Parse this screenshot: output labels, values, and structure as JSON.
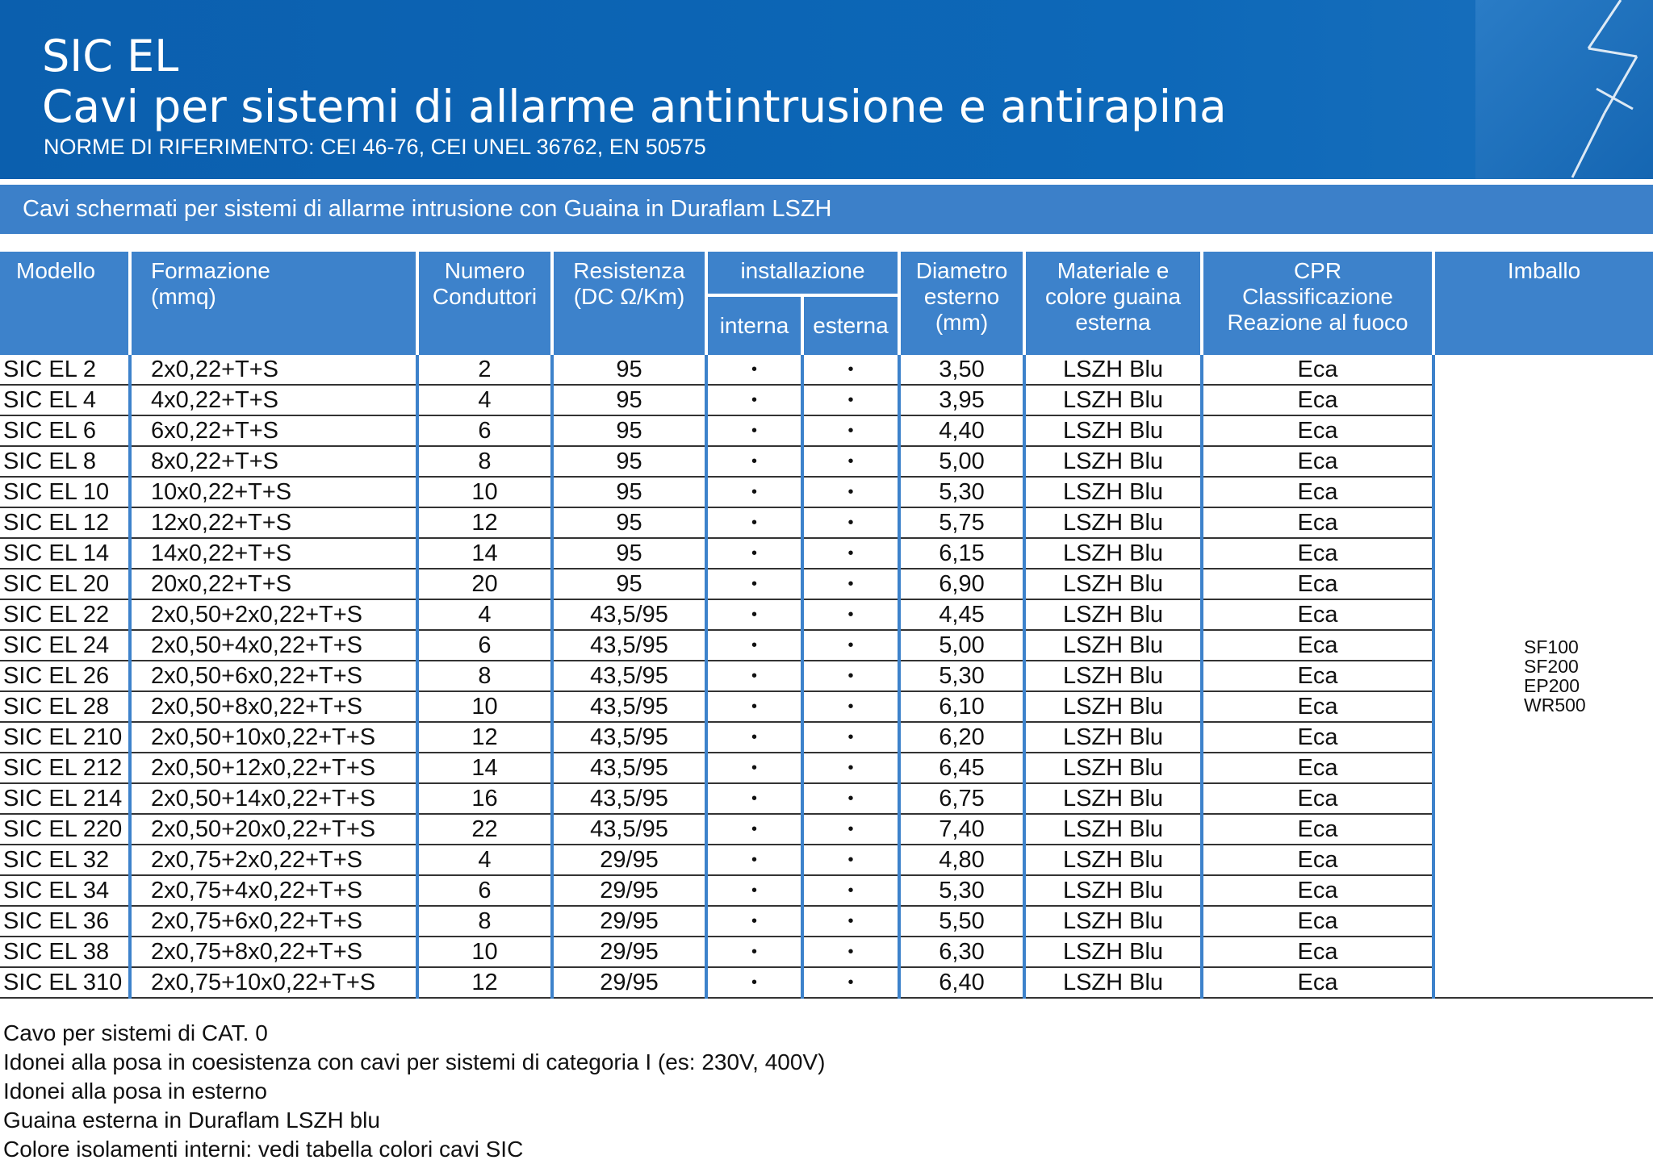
{
  "header": {
    "title": "SIC EL",
    "subtitle": "Cavi per sistemi di allarme antintrusione e antirapina",
    "norms": "NORME DI RIFERIMENTO: CEI 46-76, CEI UNEL 36762, EN 50575"
  },
  "section": "Cavi schermati per sistemi di allarme intrusione con Guaina in Duraflam LSZH",
  "table": {
    "columns": [
      "Modello",
      "Formazione\n(mmq)",
      "Numero\nConduttori",
      "Resistenza\n(DC Ω/Km)",
      "installazione",
      "Diametro\nesterno\n(mm)",
      "Materiale e\ncolore guaina\nesterna",
      "CPR\nClassificazione\nReazione al fuoco",
      "Imballo"
    ],
    "subcolumns": [
      "interna",
      "esterna"
    ],
    "rows": [
      [
        "SIC EL 2",
        "2x0,22+T+S",
        "2",
        "95",
        "•",
        "•",
        "3,50",
        "LSZH Blu",
        "Eca"
      ],
      [
        "SIC EL 4",
        "4x0,22+T+S",
        "4",
        "95",
        "•",
        "•",
        "3,95",
        "LSZH Blu",
        "Eca"
      ],
      [
        "SIC EL 6",
        "6x0,22+T+S",
        "6",
        "95",
        "•",
        "•",
        "4,40",
        "LSZH Blu",
        "Eca"
      ],
      [
        "SIC EL 8",
        "8x0,22+T+S",
        "8",
        "95",
        "•",
        "•",
        "5,00",
        "LSZH Blu",
        "Eca"
      ],
      [
        "SIC EL 10",
        "10x0,22+T+S",
        "10",
        "95",
        "•",
        "•",
        "5,30",
        "LSZH Blu",
        "Eca"
      ],
      [
        "SIC EL 12",
        "12x0,22+T+S",
        "12",
        "95",
        "•",
        "•",
        "5,75",
        "LSZH Blu",
        "Eca"
      ],
      [
        "SIC EL 14",
        "14x0,22+T+S",
        "14",
        "95",
        "•",
        "•",
        "6,15",
        "LSZH Blu",
        "Eca"
      ],
      [
        "SIC EL 20",
        "20x0,22+T+S",
        "20",
        "95",
        "•",
        "•",
        "6,90",
        "LSZH Blu",
        "Eca"
      ],
      [
        "SIC EL 22",
        "2x0,50+2x0,22+T+S",
        "4",
        "43,5/95",
        "•",
        "•",
        "4,45",
        "LSZH Blu",
        "Eca"
      ],
      [
        "SIC EL 24",
        "2x0,50+4x0,22+T+S",
        "6",
        "43,5/95",
        "•",
        "•",
        "5,00",
        "LSZH Blu",
        "Eca"
      ],
      [
        "SIC EL 26",
        "2x0,50+6x0,22+T+S",
        "8",
        "43,5/95",
        "•",
        "•",
        "5,30",
        "LSZH Blu",
        "Eca"
      ],
      [
        "SIC EL 28",
        "2x0,50+8x0,22+T+S",
        "10",
        "43,5/95",
        "•",
        "•",
        "6,10",
        "LSZH Blu",
        "Eca"
      ],
      [
        "SIC EL 210",
        "2x0,50+10x0,22+T+S",
        "12",
        "43,5/95",
        "•",
        "•",
        "6,20",
        "LSZH Blu",
        "Eca"
      ],
      [
        "SIC EL 212",
        "2x0,50+12x0,22+T+S",
        "14",
        "43,5/95",
        "•",
        "•",
        "6,45",
        "LSZH Blu",
        "Eca"
      ],
      [
        "SIC EL 214",
        "2x0,50+14x0,22+T+S",
        "16",
        "43,5/95",
        "•",
        "•",
        "6,75",
        "LSZH Blu",
        "Eca"
      ],
      [
        "SIC EL 220",
        "2x0,50+20x0,22+T+S",
        "22",
        "43,5/95",
        "•",
        "•",
        "7,40",
        "LSZH Blu",
        "Eca"
      ],
      [
        "SIC EL 32",
        "2x0,75+2x0,22+T+S",
        "4",
        "29/95",
        "•",
        "•",
        "4,80",
        "LSZH Blu",
        "Eca"
      ],
      [
        "SIC EL 34",
        "2x0,75+4x0,22+T+S",
        "6",
        "29/95",
        "•",
        "•",
        "5,30",
        "LSZH Blu",
        "Eca"
      ],
      [
        "SIC EL 36",
        "2x0,75+6x0,22+T+S",
        "8",
        "29/95",
        "•",
        "•",
        "5,50",
        "LSZH Blu",
        "Eca"
      ],
      [
        "SIC EL 38",
        "2x0,75+8x0,22+T+S",
        "10",
        "29/95",
        "•",
        "•",
        "6,30",
        "LSZH Blu",
        "Eca"
      ],
      [
        "SIC EL 310",
        "2x0,75+10x0,22+T+S",
        "12",
        "29/95",
        "•",
        "•",
        "6,40",
        "LSZH Blu",
        "Eca"
      ]
    ],
    "packaging": "SF100\nSF200\nEP200\nWR500"
  },
  "notes": [
    "Cavo per sistemi di CAT. 0",
    "Idonei alla posa in coesistenza con cavi per sistemi di categoria I (es: 230V, 400V)",
    "Idonei alla posa in esterno",
    "Guaina esterna in Duraflam LSZH blu",
    "Colore isolamenti interni: vedi tabella colori cavi SIC"
  ]
}
